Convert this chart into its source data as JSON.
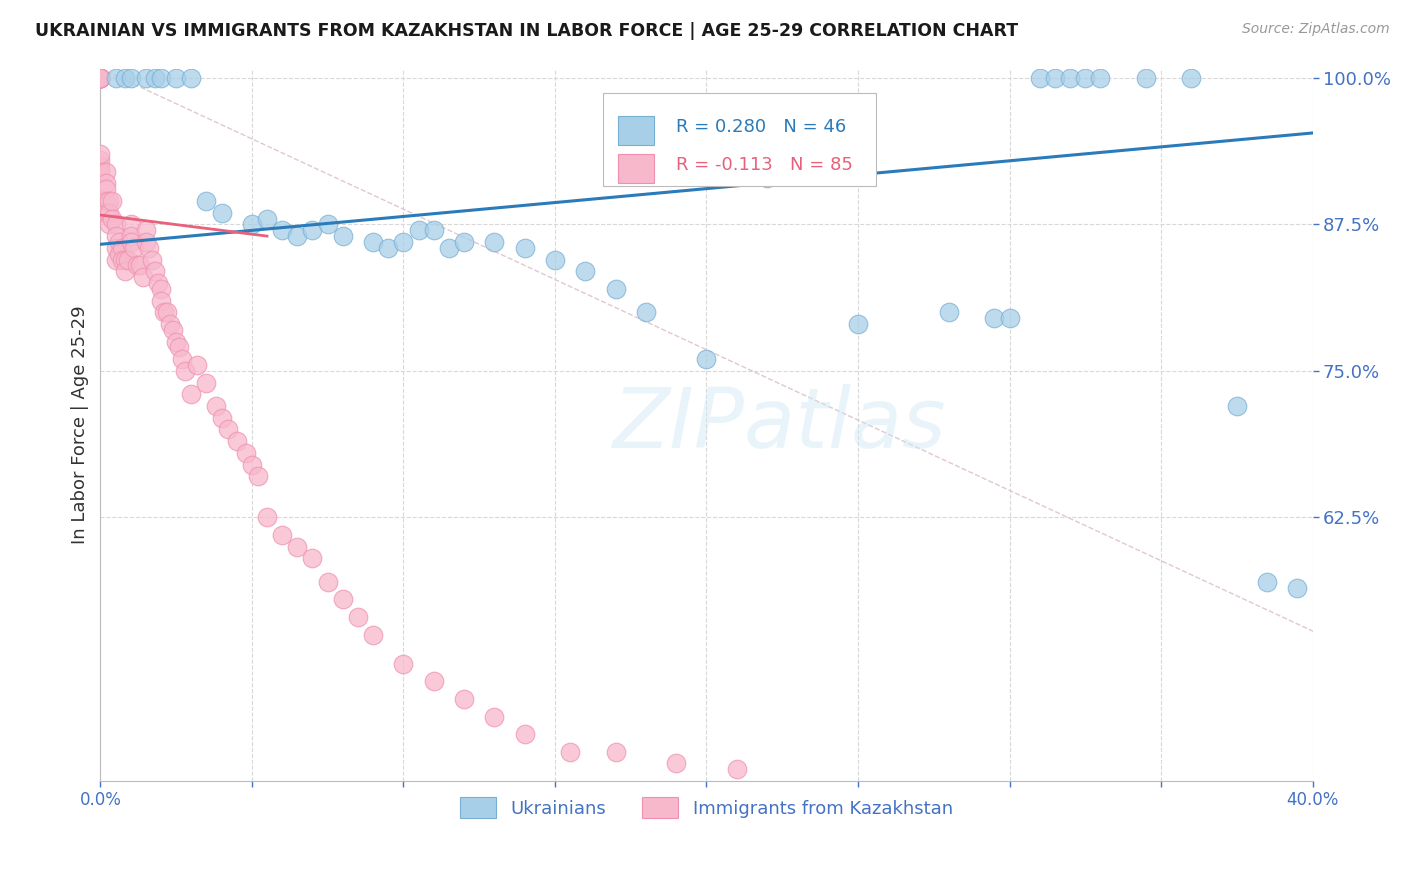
{
  "title": "UKRAINIAN VS IMMIGRANTS FROM KAZAKHSTAN IN LABOR FORCE | AGE 25-29 CORRELATION CHART",
  "source": "Source: ZipAtlas.com",
  "ylabel": "In Labor Force | Age 25-29",
  "watermark": "ZIPatlas",
  "xlim": [
    0.0,
    0.4
  ],
  "ylim": [
    0.4,
    1.008
  ],
  "xticks": [
    0.0,
    0.05,
    0.1,
    0.15,
    0.2,
    0.25,
    0.3,
    0.35,
    0.4
  ],
  "yticks_right": [
    0.625,
    0.75,
    0.875,
    1.0
  ],
  "ytick_right_labels": [
    "62.5%",
    "75.0%",
    "87.5%",
    "100.0%"
  ],
  "legend_blue_R": "R = 0.280",
  "legend_blue_N": "N = 46",
  "legend_pink_R": "R = -0.113",
  "legend_pink_N": "N = 85",
  "blue_color": "#a8cfe8",
  "pink_color": "#f7b8cc",
  "blue_edge_color": "#7aafd4",
  "pink_edge_color": "#f090b0",
  "blue_line_color": "#2b7bba",
  "pink_line_color": "#e8607a",
  "ref_line_color": "#e0c8d0",
  "grid_color": "#d8d8d8",
  "axis_color": "#4472c4",
  "background_color": "#ffffff",
  "title_color": "#1a1a1a",
  "source_color": "#999999",
  "blue_line_x": [
    0.0,
    0.4
  ],
  "blue_line_y": [
    0.858,
    0.953
  ],
  "pink_line_x": [
    0.0,
    0.055
  ],
  "pink_line_y": [
    0.883,
    0.865
  ],
  "ref_line_x": [
    0.0,
    0.5
  ],
  "ref_line_y": [
    1.008,
    0.408
  ],
  "ukrainians_x": [
    0.005,
    0.008,
    0.01,
    0.015,
    0.018,
    0.02,
    0.025,
    0.03,
    0.035,
    0.04,
    0.05,
    0.055,
    0.06,
    0.065,
    0.07,
    0.075,
    0.08,
    0.09,
    0.095,
    0.1,
    0.105,
    0.11,
    0.115,
    0.12,
    0.13,
    0.14,
    0.15,
    0.16,
    0.17,
    0.18,
    0.2,
    0.22,
    0.25,
    0.28,
    0.295,
    0.3,
    0.31,
    0.315,
    0.32,
    0.325,
    0.33,
    0.345,
    0.36,
    0.375,
    0.385,
    0.395
  ],
  "ukrainians_y": [
    1.0,
    1.0,
    1.0,
    1.0,
    1.0,
    1.0,
    1.0,
    1.0,
    0.895,
    0.885,
    0.875,
    0.88,
    0.87,
    0.865,
    0.87,
    0.875,
    0.865,
    0.86,
    0.855,
    0.86,
    0.87,
    0.87,
    0.855,
    0.86,
    0.86,
    0.855,
    0.845,
    0.835,
    0.82,
    0.8,
    0.76,
    0.915,
    0.79,
    0.8,
    0.795,
    0.795,
    1.0,
    1.0,
    1.0,
    1.0,
    1.0,
    1.0,
    1.0,
    0.72,
    0.57,
    0.565
  ],
  "kazakhstan_x": [
    0.0,
    0.0,
    0.0,
    0.0,
    0.0,
    0.0,
    0.0,
    0.0,
    0.0,
    0.0,
    0.0,
    0.0,
    0.0,
    0.0,
    0.002,
    0.002,
    0.002,
    0.002,
    0.002,
    0.003,
    0.003,
    0.003,
    0.004,
    0.004,
    0.005,
    0.005,
    0.005,
    0.005,
    0.006,
    0.006,
    0.007,
    0.007,
    0.008,
    0.008,
    0.009,
    0.01,
    0.01,
    0.01,
    0.011,
    0.012,
    0.013,
    0.014,
    0.015,
    0.015,
    0.016,
    0.017,
    0.018,
    0.019,
    0.02,
    0.02,
    0.021,
    0.022,
    0.023,
    0.024,
    0.025,
    0.026,
    0.027,
    0.028,
    0.03,
    0.032,
    0.035,
    0.038,
    0.04,
    0.042,
    0.045,
    0.048,
    0.05,
    0.052,
    0.055,
    0.06,
    0.065,
    0.07,
    0.075,
    0.08,
    0.085,
    0.09,
    0.1,
    0.11,
    0.12,
    0.13,
    0.14,
    0.155,
    0.17,
    0.19,
    0.21
  ],
  "kazakhstan_y": [
    1.0,
    1.0,
    1.0,
    1.0,
    1.0,
    1.0,
    1.0,
    1.0,
    1.0,
    1.0,
    0.925,
    0.93,
    0.935,
    0.92,
    0.92,
    0.91,
    0.905,
    0.895,
    0.885,
    0.895,
    0.885,
    0.875,
    0.895,
    0.88,
    0.875,
    0.865,
    0.855,
    0.845,
    0.86,
    0.85,
    0.855,
    0.845,
    0.845,
    0.835,
    0.845,
    0.875,
    0.865,
    0.86,
    0.855,
    0.84,
    0.84,
    0.83,
    0.87,
    0.86,
    0.855,
    0.845,
    0.835,
    0.825,
    0.82,
    0.81,
    0.8,
    0.8,
    0.79,
    0.785,
    0.775,
    0.77,
    0.76,
    0.75,
    0.73,
    0.755,
    0.74,
    0.72,
    0.71,
    0.7,
    0.69,
    0.68,
    0.67,
    0.66,
    0.625,
    0.61,
    0.6,
    0.59,
    0.57,
    0.555,
    0.54,
    0.525,
    0.5,
    0.485,
    0.47,
    0.455,
    0.44,
    0.425,
    0.425,
    0.415,
    0.41
  ]
}
